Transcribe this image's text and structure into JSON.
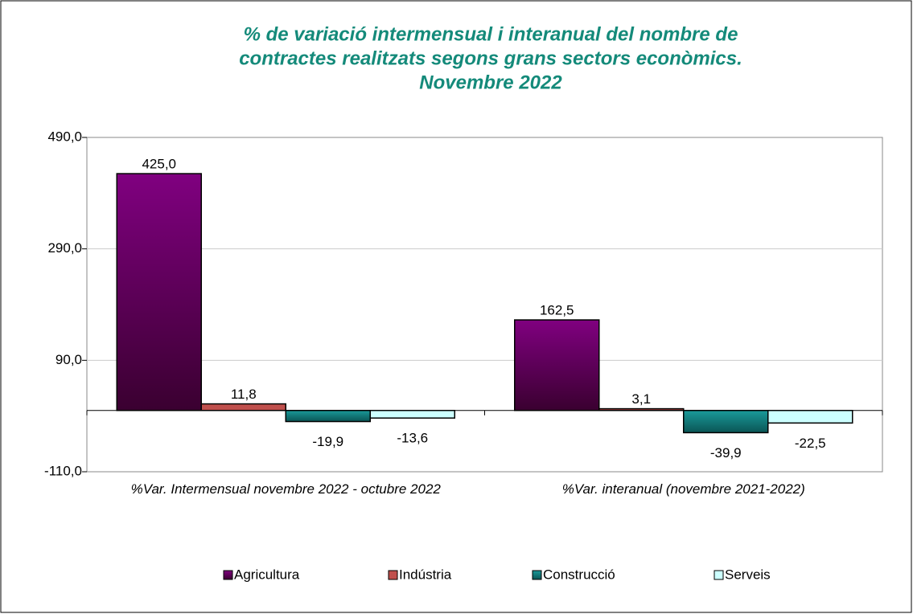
{
  "chart_data": {
    "type": "bar",
    "title": [
      "% de variació intermensual i interanual del nombre de",
      "contractes realitzats segons grans sectors econòmics.",
      "Novembre 2022"
    ],
    "categories": [
      "%Var. Intermensual novembre 2022 - octubre 2022",
      "%Var. interanual (novembre 2021-2022)"
    ],
    "series": [
      {
        "name": "Agricultura",
        "color": "#800080",
        "values": [
          425.0,
          162.5
        ],
        "value_labels": [
          "425,0",
          "162,5"
        ]
      },
      {
        "name": "Indústria",
        "color": "#c0504d",
        "values": [
          11.8,
          3.1
        ],
        "value_labels": [
          "11,8",
          "3,1"
        ]
      },
      {
        "name": "Construcció",
        "color": "#1a9a9a",
        "values": [
          -19.9,
          -39.9
        ],
        "value_labels": [
          "-19,9",
          "-39,9"
        ]
      },
      {
        "name": "Serveis",
        "color": "#ccffff",
        "values": [
          -13.6,
          -22.5
        ],
        "value_labels": [
          "-13,6",
          "-22,5"
        ]
      }
    ],
    "ylim": [
      -110,
      490
    ],
    "yticks": [
      {
        "value": -110,
        "label": "-110,0"
      },
      {
        "value": 90,
        "label": "90,0"
      },
      {
        "value": 290,
        "label": "290,0"
      },
      {
        "value": 490,
        "label": "490,0"
      }
    ],
    "grid": true,
    "legend": "bottom"
  }
}
